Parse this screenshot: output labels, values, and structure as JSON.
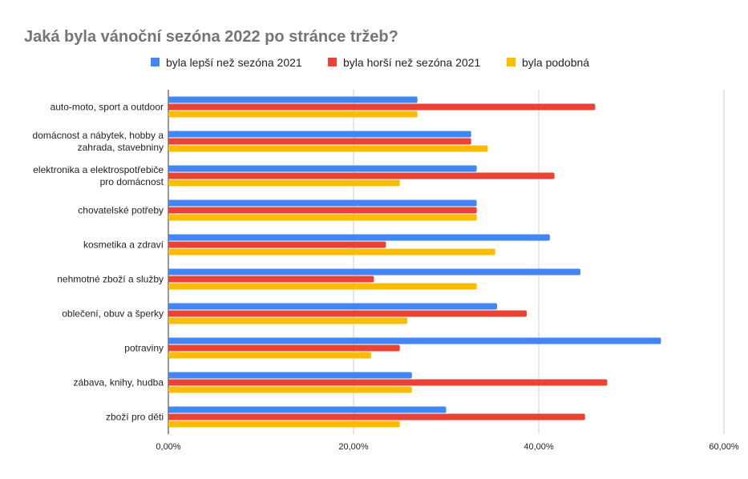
{
  "chart_data": {
    "type": "bar",
    "orientation": "horizontal",
    "title": "Jaká byla vánoční sezóna 2022 po stránce tržeb?",
    "xlabel": "",
    "ylabel": "",
    "xlim": [
      0,
      60
    ],
    "x_ticks": [
      "0,00%",
      "20,00%",
      "40,00%",
      "60,00%"
    ],
    "x_tick_values": [
      0,
      20,
      40,
      60
    ],
    "grid": true,
    "legend_position": "top",
    "categories": [
      [
        "auto-moto, sport a outdoor"
      ],
      [
        "domácnost a nábytek, hobby a",
        "zahrada, stavebniny"
      ],
      [
        "elektronika a elektrospotřebiče",
        "pro domácnost"
      ],
      [
        "chovatelské potřeby"
      ],
      [
        "kosmetika a zdraví"
      ],
      [
        "nehmotné zboží a služby"
      ],
      [
        "oblečení, obuv a šperky"
      ],
      [
        "potraviny"
      ],
      [
        "zábava, knihy, hudba"
      ],
      [
        "zboží pro děti"
      ]
    ],
    "series": [
      {
        "name": "byla lepší než sezóna 2021",
        "color": "#4285f4",
        "values": [
          26.9,
          32.7,
          33.3,
          33.3,
          41.2,
          44.5,
          35.5,
          53.2,
          26.3,
          30.0
        ]
      },
      {
        "name": "byla horší než sezóna 2021",
        "color": "#ea4335",
        "values": [
          46.1,
          32.7,
          41.7,
          33.3,
          23.5,
          22.2,
          38.7,
          25.0,
          47.4,
          45.0
        ]
      },
      {
        "name": "byla podobná",
        "color": "#fbbc04",
        "values": [
          26.9,
          34.5,
          25.0,
          33.3,
          35.3,
          33.3,
          25.8,
          21.9,
          26.3,
          25.0
        ]
      }
    ]
  }
}
